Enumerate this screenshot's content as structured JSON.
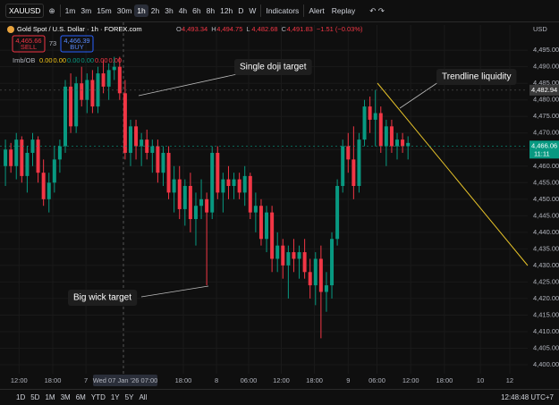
{
  "toolbar": {
    "symbol": "XAUUSD",
    "intervals": [
      "1m",
      "3m",
      "15m",
      "30m",
      "1h",
      "2h",
      "3h",
      "4h",
      "6h",
      "8h",
      "12h",
      "D",
      "W"
    ],
    "active_interval": 4,
    "indicators": "Indicators",
    "alert": "Alert",
    "replay": "Replay"
  },
  "legend": {
    "title": "Gold Spot / U.S. Dollar · 1h · FOREX.com",
    "ohlc": [
      {
        "label": "O",
        "value": "4,493.34"
      },
      {
        "label": "H",
        "value": "4,494.75"
      },
      {
        "label": "L",
        "value": "4,482.68"
      },
      {
        "label": "C",
        "value": "4,491.83"
      }
    ],
    "change": "−1.51 (−0.03%)",
    "sell": {
      "price": "4,465.66",
      "label": "SELL"
    },
    "spread": "73",
    "buy": {
      "price": "4,466.39",
      "label": "BUY"
    },
    "indicator": {
      "name": "Imb/OB",
      "values": [
        "0.00",
        "0.00",
        "0.00",
        "0.00",
        "0.00",
        "0.00"
      ]
    }
  },
  "currency": "USD",
  "chart_data": {
    "type": "candlestick",
    "up_color": "#089981",
    "down_color": "#f23645",
    "candles": [
      [
        4460,
        4468,
        4454,
        4465
      ],
      [
        4465,
        4467,
        4458,
        4460
      ],
      [
        4460,
        4470,
        4456,
        4468
      ],
      [
        4468,
        4469,
        4455,
        4457
      ],
      [
        4457,
        4466,
        4452,
        4464
      ],
      [
        4464,
        4470,
        4460,
        4468
      ],
      [
        4468,
        4469,
        4455,
        4458
      ],
      [
        4458,
        4462,
        4448,
        4450
      ],
      [
        4450,
        4458,
        4446,
        4455
      ],
      [
        4455,
        4466,
        4452,
        4462
      ],
      [
        4462,
        4468,
        4458,
        4466
      ],
      [
        4466,
        4486,
        4464,
        4484
      ],
      [
        4484,
        4488,
        4470,
        4472
      ],
      [
        4472,
        4487,
        4470,
        4485
      ],
      [
        4485,
        4490,
        4478,
        4480
      ],
      [
        4480,
        4488,
        4476,
        4486
      ],
      [
        4486,
        4489,
        4476,
        4478
      ],
      [
        4478,
        4490,
        4476,
        4488
      ],
      [
        4488,
        4492,
        4482,
        4484
      ],
      [
        4484,
        4491,
        4480,
        4489
      ],
      [
        4489,
        4493,
        4486,
        4490
      ],
      [
        4490,
        4493,
        4480,
        4482
      ],
      [
        4482,
        4486,
        4462,
        4464
      ],
      [
        4464,
        4474,
        4460,
        4472
      ],
      [
        4472,
        4474,
        4462,
        4466
      ],
      [
        4466,
        4470,
        4460,
        4468
      ],
      [
        4468,
        4471,
        4462,
        4464
      ],
      [
        4464,
        4468,
        4458,
        4466
      ],
      [
        4466,
        4468,
        4455,
        4458
      ],
      [
        4458,
        4466,
        4454,
        4464
      ],
      [
        4464,
        4466,
        4450,
        4452
      ],
      [
        4452,
        4460,
        4446,
        4456
      ],
      [
        4456,
        4460,
        4444,
        4447
      ],
      [
        4447,
        4456,
        4442,
        4454
      ],
      [
        4454,
        4458,
        4440,
        4444
      ],
      [
        4444,
        4452,
        4436,
        4448
      ],
      [
        4448,
        4456,
        4444,
        4450
      ],
      [
        4450,
        4452,
        4424,
        4446
      ],
      [
        4446,
        4466,
        4444,
        4464
      ],
      [
        4464,
        4466,
        4450,
        4452
      ],
      [
        4452,
        4458,
        4446,
        4456
      ],
      [
        4456,
        4460,
        4450,
        4454
      ],
      [
        4454,
        4458,
        4450,
        4456
      ],
      [
        4456,
        4458,
        4450,
        4452
      ],
      [
        4452,
        4460,
        4448,
        4457
      ],
      [
        4457,
        4458,
        4444,
        4446
      ],
      [
        4446,
        4452,
        4440,
        4448
      ],
      [
        4448,
        4450,
        4436,
        4438
      ],
      [
        4438,
        4448,
        4434,
        4446
      ],
      [
        4446,
        4448,
        4428,
        4432
      ],
      [
        4432,
        4440,
        4428,
        4436
      ],
      [
        4436,
        4438,
        4426,
        4430
      ],
      [
        4430,
        4436,
        4420,
        4434
      ],
      [
        4434,
        4438,
        4428,
        4432
      ],
      [
        4432,
        4436,
        4426,
        4434
      ],
      [
        4434,
        4438,
        4426,
        4428
      ],
      [
        4428,
        4432,
        4420,
        4424
      ],
      [
        4424,
        4434,
        4418,
        4432
      ],
      [
        4432,
        4436,
        4408,
        4422
      ],
      [
        4422,
        4428,
        4416,
        4424
      ],
      [
        4424,
        4440,
        4420,
        4438
      ],
      [
        4438,
        4456,
        4436,
        4454
      ],
      [
        4454,
        4468,
        4452,
        4466
      ],
      [
        4466,
        4470,
        4458,
        4462
      ],
      [
        4462,
        4472,
        4450,
        4454
      ],
      [
        4454,
        4470,
        4452,
        4468
      ],
      [
        4468,
        4480,
        4466,
        4478
      ],
      [
        4478,
        4481,
        4470,
        4474
      ],
      [
        4474,
        4483,
        4466,
        4476
      ],
      [
        4476,
        4478,
        4464,
        4466
      ],
      [
        4466,
        4474,
        4460,
        4472
      ],
      [
        4472,
        4474,
        4464,
        4466
      ],
      [
        4466,
        4470,
        4462,
        4468
      ],
      [
        4468,
        4470,
        4464,
        4466
      ],
      [
        4466,
        4469,
        4462,
        4467
      ]
    ],
    "ylim": [
      4397.3,
      4502.6
    ],
    "yticks": [
      {
        "value": 4400,
        "label": "4,400.00"
      },
      {
        "value": 4405,
        "label": "4,405.00"
      },
      {
        "value": 4410,
        "label": "4,410.00"
      },
      {
        "value": 4415,
        "label": "4,415.00"
      },
      {
        "value": 4420,
        "label": "4,420.00"
      },
      {
        "value": 4425,
        "label": "4,425.00"
      },
      {
        "value": 4430,
        "label": "4,430.00"
      },
      {
        "value": 4435,
        "label": "4,435.00"
      },
      {
        "value": 4440,
        "label": "4,440.00"
      },
      {
        "value": 4445,
        "label": "4,445.00"
      },
      {
        "value": 4450,
        "label": "4,450.00"
      },
      {
        "value": 4455,
        "label": "4,455.00"
      },
      {
        "value": 4460,
        "label": "4,460.00"
      },
      {
        "value": 4465,
        "label": "4,465.00"
      },
      {
        "value": 4470,
        "label": "4,470.00"
      },
      {
        "value": 4475,
        "label": "4,475.00"
      },
      {
        "value": 4480,
        "label": "4,480.00"
      },
      {
        "value": 4485,
        "label": "4,485.00"
      },
      {
        "value": 4490,
        "label": "4,490.00"
      },
      {
        "value": 4495,
        "label": "4,495.00"
      }
    ],
    "xlim": [
      -1,
      96
    ],
    "xticks": [
      {
        "value": 2.5,
        "label": "12:00"
      },
      {
        "value": 8.7,
        "label": "18:00"
      },
      {
        "value": 14.8,
        "label": "7"
      },
      {
        "value": 32.7,
        "label": "18:00"
      },
      {
        "value": 38.8,
        "label": "8"
      },
      {
        "value": 44.7,
        "label": "06:00"
      },
      {
        "value": 50.7,
        "label": "12:00"
      },
      {
        "value": 56.8,
        "label": "18:00"
      },
      {
        "value": 63,
        "label": "9"
      },
      {
        "value": 68.3,
        "label": "06:00"
      },
      {
        "value": 74.5,
        "label": "12:00"
      },
      {
        "value": 80.7,
        "label": "18:00"
      },
      {
        "value": 87.3,
        "label": "10"
      },
      {
        "value": 92.7,
        "label": "12"
      }
    ],
    "crosshair_label": "Wed 07 Jan '26   07:00",
    "price_lines": [
      {
        "value": 4482.94,
        "label": "4,482.94"
      },
      {
        "value": 4466.06,
        "label": "4,466.06",
        "countdown": "11:11"
      }
    ],
    "annotations": [
      "Single doji target",
      "Trendline liquidity",
      "Big wick target"
    ]
  },
  "range_buttons": [
    "1D",
    "5D",
    "1M",
    "3M",
    "6M",
    "YTD",
    "1Y",
    "5Y",
    "All"
  ],
  "clock": "12:48:48 UTC+7"
}
